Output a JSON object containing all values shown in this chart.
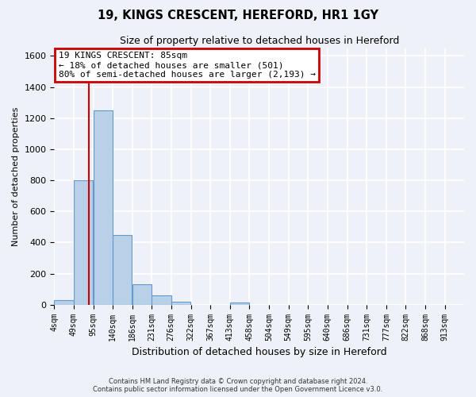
{
  "title": "19, KINGS CRESCENT, HEREFORD, HR1 1GY",
  "subtitle": "Size of property relative to detached houses in Hereford",
  "xlabel": "Distribution of detached houses by size in Hereford",
  "ylabel": "Number of detached properties",
  "footer_line1": "Contains HM Land Registry data © Crown copyright and database right 2024.",
  "footer_line2": "Contains public sector information licensed under the Open Government Licence v3.0.",
  "bar_edges": [
    4,
    49,
    95,
    140,
    186,
    231,
    276,
    322,
    367,
    413,
    458,
    504,
    549,
    595,
    640,
    686,
    731,
    777,
    822,
    868,
    913
  ],
  "bar_heights": [
    30,
    800,
    1250,
    450,
    130,
    60,
    20,
    0,
    0,
    15,
    0,
    0,
    0,
    0,
    0,
    0,
    0,
    0,
    0,
    0,
    0
  ],
  "bar_color": "#b8d0e8",
  "bar_edge_color": "#6699cc",
  "vline_x": 85,
  "vline_color": "#cc0000",
  "annotation_line1": "19 KINGS CRESCENT: 85sqm",
  "annotation_line2": "← 18% of detached houses are smaller (501)",
  "annotation_line3": "80% of semi-detached houses are larger (2,193) →",
  "annotation_box_color": "#cc0000",
  "annotation_text_color": "#000000",
  "ylim": [
    0,
    1650
  ],
  "yticks": [
    0,
    200,
    400,
    600,
    800,
    1000,
    1200,
    1400,
    1600
  ],
  "bg_color": "#eef2f8",
  "plot_bg_color": "#eef2f8",
  "grid_color": "#ffffff",
  "tick_labels": [
    "4sqm",
    "49sqm",
    "95sqm",
    "140sqm",
    "186sqm",
    "231sqm",
    "276sqm",
    "322sqm",
    "367sqm",
    "413sqm",
    "458sqm",
    "504sqm",
    "549sqm",
    "595sqm",
    "640sqm",
    "686sqm",
    "731sqm",
    "777sqm",
    "822sqm",
    "868sqm",
    "913sqm"
  ],
  "title_fontsize": 10.5,
  "subtitle_fontsize": 9,
  "ylabel_fontsize": 8,
  "xlabel_fontsize": 9,
  "footer_fontsize": 6,
  "ytick_fontsize": 8,
  "xtick_fontsize": 7
}
